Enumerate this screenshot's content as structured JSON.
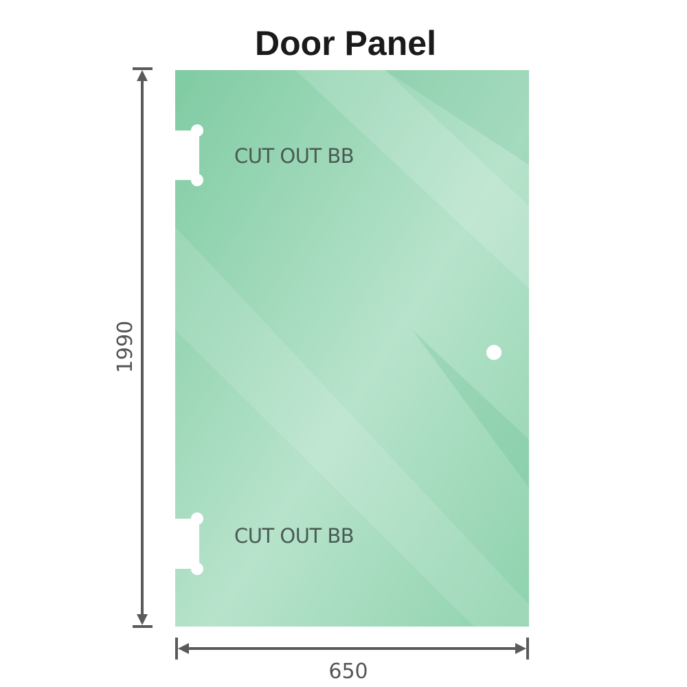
{
  "title": "Door Panel",
  "panel": {
    "color": "#86cfa8",
    "cutout_labels": [
      "CUT OUT BB",
      "CUT OUT BB"
    ]
  },
  "dimensions": {
    "height": "1990",
    "width": "650",
    "line_color": "#5a5a5a"
  }
}
